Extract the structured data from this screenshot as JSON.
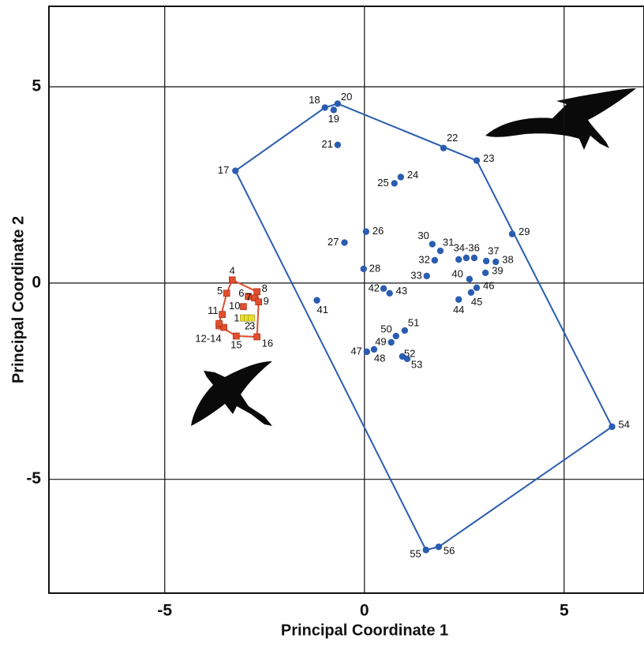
{
  "chart_data": {
    "type": "scatter",
    "xlabel": "Principal Coordinate 1",
    "ylabel": "Principal Coordinate 2",
    "xlim": [
      -7.9,
      7.0
    ],
    "ylim": [
      -7.9,
      7.05
    ],
    "xticks": [
      -5,
      0,
      5
    ],
    "yticks": [
      -5,
      0,
      5
    ],
    "grid": true,
    "series": [
      {
        "color": "#2a5db0",
        "marker": "circle",
        "hull": true,
        "x": [
          -3.23,
          -0.99,
          -0.77,
          -0.67,
          -0.67,
          1.98,
          2.81,
          0.91,
          0.75,
          0.04,
          -0.5,
          -0.02,
          3.7,
          1.7,
          1.9,
          1.76,
          1.56,
          2.36,
          2.55,
          2.75,
          3.05,
          3.29,
          3.03,
          2.63,
          -1.19,
          0.48,
          0.63,
          2.36,
          2.67,
          2.81,
          0.06,
          0.24,
          0.67,
          0.79,
          1.01,
          0.95,
          1.07,
          6.2,
          1.54,
          1.86
        ],
        "y": [
          2.86,
          4.47,
          4.41,
          4.57,
          3.52,
          3.44,
          3.12,
          2.7,
          2.54,
          1.31,
          1.03,
          0.36,
          1.25,
          0.99,
          0.82,
          0.58,
          0.18,
          0.6,
          0.64,
          0.64,
          0.56,
          0.54,
          0.26,
          0.1,
          -0.44,
          -0.14,
          -0.26,
          -0.42,
          -0.24,
          -0.12,
          -1.75,
          -1.69,
          -1.51,
          -1.35,
          -1.21,
          -1.87,
          -1.93,
          -3.66,
          -6.8,
          -6.72
        ],
        "labels": [
          "17",
          "18",
          "19",
          "20",
          "21",
          "22",
          "23",
          "24",
          "25",
          "26",
          "27",
          "28",
          "29",
          "30",
          "31",
          "32",
          "33",
          "34-36",
          null,
          null,
          "37",
          "38",
          "39",
          "40",
          "41",
          "42",
          "43",
          "44",
          "45",
          "46",
          "47",
          "48",
          "49",
          "50",
          "51",
          "52",
          "53",
          "54",
          "55",
          "56"
        ]
      },
      {
        "color": "#e0502e",
        "marker": "square",
        "hull": true,
        "x": [
          -3.31,
          -3.45,
          -2.91,
          -2.69,
          -2.75,
          -2.65,
          -3.03,
          -3.56,
          -3.64,
          -3.52,
          -3.64,
          -3.21,
          -2.69
        ],
        "y": [
          0.08,
          -0.26,
          -0.34,
          -0.22,
          -0.38,
          -0.48,
          -0.6,
          -0.8,
          -1.09,
          -1.13,
          -1.03,
          -1.35,
          -1.37
        ],
        "labels": [
          "4",
          "5",
          "6",
          "8",
          "7",
          "9",
          "10",
          "11",
          "12-14",
          null,
          null,
          "15",
          "16"
        ]
      },
      {
        "color": "#e8e02a",
        "marker": "square",
        "hull": false,
        "x": [
          -3.03,
          -2.93,
          -2.83
        ],
        "y": [
          -0.89,
          -0.89,
          -0.89
        ],
        "labels": [
          "1",
          "2",
          "3"
        ]
      }
    ]
  }
}
